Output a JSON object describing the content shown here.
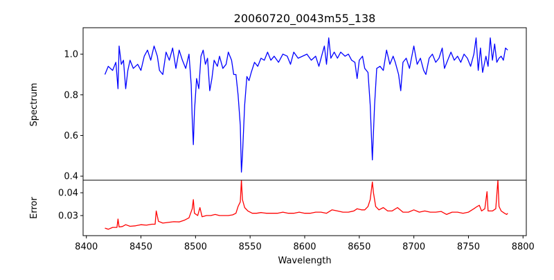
{
  "chart_data": [
    {
      "type": "line",
      "title": "20060720_0043m55_138",
      "xlabel": "",
      "ylabel": "Spectrum",
      "xlim": [
        8397,
        8803
      ],
      "ylim": [
        0.38,
        1.13
      ],
      "yticks": [
        0.4,
        0.6,
        0.8,
        1.0
      ],
      "ytick_labels": [
        "0.4",
        "0.6",
        "0.8",
        "1.0"
      ],
      "grid": false,
      "series": [
        {
          "name": "Spectrum",
          "color": "#0000ff",
          "points": [
            [
              8417,
              0.9
            ],
            [
              8420,
              0.94
            ],
            [
              8424,
              0.92
            ],
            [
              8427,
              0.96
            ],
            [
              8429,
              0.83
            ],
            [
              8430,
              1.04
            ],
            [
              8432,
              0.95
            ],
            [
              8434,
              0.97
            ],
            [
              8436,
              0.83
            ],
            [
              8438,
              0.92
            ],
            [
              8440,
              0.97
            ],
            [
              8443,
              0.93
            ],
            [
              8447,
              0.95
            ],
            [
              8450,
              0.92
            ],
            [
              8453,
              0.99
            ],
            [
              8456,
              1.02
            ],
            [
              8459,
              0.97
            ],
            [
              8462,
              1.04
            ],
            [
              8465,
              0.99
            ],
            [
              8467,
              0.92
            ],
            [
              8470,
              0.9
            ],
            [
              8473,
              1.01
            ],
            [
              8476,
              0.97
            ],
            [
              8479,
              1.03
            ],
            [
              8482,
              0.93
            ],
            [
              8485,
              1.02
            ],
            [
              8488,
              0.97
            ],
            [
              8491,
              0.93
            ],
            [
              8494,
              1.0
            ],
            [
              8496,
              0.85
            ],
            [
              8497,
              0.68
            ],
            [
              8498,
              0.555
            ],
            [
              8499,
              0.72
            ],
            [
              8501,
              0.88
            ],
            [
              8503,
              0.83
            ],
            [
              8505,
              0.99
            ],
            [
              8507,
              1.02
            ],
            [
              8509,
              0.95
            ],
            [
              8511,
              0.98
            ],
            [
              8513,
              0.82
            ],
            [
              8515,
              0.88
            ],
            [
              8517,
              0.97
            ],
            [
              8520,
              0.94
            ],
            [
              8522,
              0.99
            ],
            [
              8525,
              0.93
            ],
            [
              8528,
              0.95
            ],
            [
              8530,
              1.01
            ],
            [
              8533,
              0.97
            ],
            [
              8535,
              0.9
            ],
            [
              8537,
              0.9
            ],
            [
              8539,
              0.8
            ],
            [
              8541,
              0.65
            ],
            [
              8542,
              0.42
            ],
            [
              8543,
              0.5
            ],
            [
              8545,
              0.75
            ],
            [
              8547,
              0.89
            ],
            [
              8549,
              0.87
            ],
            [
              8551,
              0.91
            ],
            [
              8554,
              0.96
            ],
            [
              8557,
              0.94
            ],
            [
              8560,
              0.98
            ],
            [
              8563,
              0.97
            ],
            [
              8566,
              1.01
            ],
            [
              8569,
              0.97
            ],
            [
              8572,
              0.99
            ],
            [
              8576,
              0.96
            ],
            [
              8580,
              1.0
            ],
            [
              8584,
              0.99
            ],
            [
              8587,
              0.95
            ],
            [
              8590,
              1.01
            ],
            [
              8594,
              0.98
            ],
            [
              8598,
              0.99
            ],
            [
              8602,
              1.0
            ],
            [
              8606,
              0.97
            ],
            [
              8610,
              0.99
            ],
            [
              8613,
              0.94
            ],
            [
              8616,
              1.0
            ],
            [
              8618,
              1.04
            ],
            [
              8620,
              0.95
            ],
            [
              8622,
              1.08
            ],
            [
              8624,
              0.98
            ],
            [
              8627,
              1.01
            ],
            [
              8630,
              0.98
            ],
            [
              8633,
              1.01
            ],
            [
              8637,
              0.99
            ],
            [
              8640,
              1.0
            ],
            [
              8643,
              0.97
            ],
            [
              8646,
              0.96
            ],
            [
              8648,
              0.88
            ],
            [
              8650,
              0.97
            ],
            [
              8653,
              0.99
            ],
            [
              8655,
              0.93
            ],
            [
              8658,
              0.91
            ],
            [
              8660,
              0.75
            ],
            [
              8662,
              0.48
            ],
            [
              8664,
              0.75
            ],
            [
              8666,
              0.93
            ],
            [
              8669,
              0.94
            ],
            [
              8672,
              0.92
            ],
            [
              8675,
              1.02
            ],
            [
              8678,
              0.95
            ],
            [
              8681,
              0.99
            ],
            [
              8683,
              0.96
            ],
            [
              8686,
              0.9
            ],
            [
              8688,
              0.82
            ],
            [
              8690,
              0.96
            ],
            [
              8693,
              0.98
            ],
            [
              8696,
              0.93
            ],
            [
              8700,
              1.04
            ],
            [
              8703,
              0.95
            ],
            [
              8706,
              0.98
            ],
            [
              8709,
              0.92
            ],
            [
              8711,
              0.9
            ],
            [
              8714,
              0.98
            ],
            [
              8717,
              1.0
            ],
            [
              8720,
              0.96
            ],
            [
              8723,
              0.98
            ],
            [
              8726,
              1.03
            ],
            [
              8728,
              0.93
            ],
            [
              8731,
              0.97
            ],
            [
              8734,
              1.01
            ],
            [
              8737,
              0.97
            ],
            [
              8740,
              0.99
            ],
            [
              8743,
              0.96
            ],
            [
              8746,
              1.0
            ],
            [
              8749,
              0.98
            ],
            [
              8752,
              0.94
            ],
            [
              8755,
              1.0
            ],
            [
              8757,
              1.08
            ],
            [
              8759,
              0.92
            ],
            [
              8761,
              1.03
            ],
            [
              8763,
              0.91
            ],
            [
              8766,
              0.99
            ],
            [
              8768,
              0.94
            ],
            [
              8770,
              1.08
            ],
            [
              8772,
              0.97
            ],
            [
              8774,
              1.05
            ],
            [
              8776,
              0.96
            ],
            [
              8778,
              0.98
            ],
            [
              8780,
              0.99
            ],
            [
              8782,
              0.97
            ],
            [
              8784,
              1.03
            ],
            [
              8786,
              1.02
            ]
          ]
        }
      ]
    },
    {
      "type": "line",
      "title": "",
      "xlabel": "Wavelength",
      "ylabel": "Error",
      "xlim": [
        8397,
        8803
      ],
      "ylim": [
        0.0212,
        0.0455
      ],
      "xticks": [
        8400,
        8450,
        8500,
        8550,
        8600,
        8650,
        8700,
        8750,
        8800
      ],
      "xtick_labels": [
        "8400",
        "8450",
        "8500",
        "8550",
        "8600",
        "8650",
        "8700",
        "8750",
        "8800"
      ],
      "yticks": [
        0.03,
        0.04
      ],
      "ytick_labels": [
        "0.03",
        "0.04"
      ],
      "grid": false,
      "series": [
        {
          "name": "Error",
          "color": "#ff0000",
          "points": [
            [
              8417,
              0.0245
            ],
            [
              8420,
              0.024
            ],
            [
              8424,
              0.0248
            ],
            [
              8428,
              0.0248
            ],
            [
              8429,
              0.0285
            ],
            [
              8430,
              0.025
            ],
            [
              8433,
              0.0252
            ],
            [
              8436,
              0.026
            ],
            [
              8440,
              0.0253
            ],
            [
              8445,
              0.0255
            ],
            [
              8450,
              0.026
            ],
            [
              8455,
              0.0258
            ],
            [
              8460,
              0.0262
            ],
            [
              8463,
              0.0262
            ],
            [
              8464,
              0.032
            ],
            [
              8466,
              0.0275
            ],
            [
              8470,
              0.0267
            ],
            [
              8475,
              0.027
            ],
            [
              8480,
              0.0273
            ],
            [
              8485,
              0.0272
            ],
            [
              8490,
              0.028
            ],
            [
              8494,
              0.029
            ],
            [
              8497,
              0.033
            ],
            [
              8498,
              0.037
            ],
            [
              8499,
              0.031
            ],
            [
              8502,
              0.03
            ],
            [
              8504,
              0.0335
            ],
            [
              8506,
              0.0295
            ],
            [
              8510,
              0.03
            ],
            [
              8514,
              0.03
            ],
            [
              8518,
              0.0305
            ],
            [
              8522,
              0.03
            ],
            [
              8526,
              0.03
            ],
            [
              8530,
              0.03
            ],
            [
              8534,
              0.0303
            ],
            [
              8537,
              0.031
            ],
            [
              8539,
              0.034
            ],
            [
              8541,
              0.036
            ],
            [
              8542,
              0.0455
            ],
            [
              8543,
              0.037
            ],
            [
              8545,
              0.0335
            ],
            [
              8548,
              0.032
            ],
            [
              8552,
              0.031
            ],
            [
              8556,
              0.031
            ],
            [
              8560,
              0.0313
            ],
            [
              8565,
              0.031
            ],
            [
              8570,
              0.031
            ],
            [
              8575,
              0.031
            ],
            [
              8580,
              0.0315
            ],
            [
              8585,
              0.031
            ],
            [
              8590,
              0.031
            ],
            [
              8595,
              0.0315
            ],
            [
              8600,
              0.031
            ],
            [
              8605,
              0.031
            ],
            [
              8610,
              0.0315
            ],
            [
              8615,
              0.0315
            ],
            [
              8620,
              0.031
            ],
            [
              8625,
              0.0325
            ],
            [
              8630,
              0.032
            ],
            [
              8635,
              0.0315
            ],
            [
              8640,
              0.0315
            ],
            [
              8645,
              0.032
            ],
            [
              8648,
              0.033
            ],
            [
              8652,
              0.0325
            ],
            [
              8655,
              0.0325
            ],
            [
              8658,
              0.034
            ],
            [
              8660,
              0.037
            ],
            [
              8662,
              0.0447
            ],
            [
              8663,
              0.04
            ],
            [
              8665,
              0.034
            ],
            [
              8668,
              0.0325
            ],
            [
              8672,
              0.0335
            ],
            [
              8676,
              0.032
            ],
            [
              8680,
              0.032
            ],
            [
              8685,
              0.0335
            ],
            [
              8690,
              0.0315
            ],
            [
              8695,
              0.0315
            ],
            [
              8700,
              0.0325
            ],
            [
              8705,
              0.0315
            ],
            [
              8710,
              0.032
            ],
            [
              8715,
              0.0315
            ],
            [
              8720,
              0.0315
            ],
            [
              8725,
              0.0318
            ],
            [
              8730,
              0.0305
            ],
            [
              8735,
              0.0315
            ],
            [
              8740,
              0.0315
            ],
            [
              8745,
              0.031
            ],
            [
              8750,
              0.0315
            ],
            [
              8755,
              0.033
            ],
            [
              8758,
              0.034
            ],
            [
              8760,
              0.0345
            ],
            [
              8762,
              0.032
            ],
            [
              8765,
              0.033
            ],
            [
              8767,
              0.0405
            ],
            [
              8768,
              0.032
            ],
            [
              8772,
              0.032
            ],
            [
              8775,
              0.033
            ],
            [
              8777,
              0.0455
            ],
            [
              8778,
              0.034
            ],
            [
              8780,
              0.032
            ],
            [
              8783,
              0.031
            ],
            [
              8785,
              0.0305
            ],
            [
              8786,
              0.031
            ]
          ]
        }
      ]
    }
  ]
}
